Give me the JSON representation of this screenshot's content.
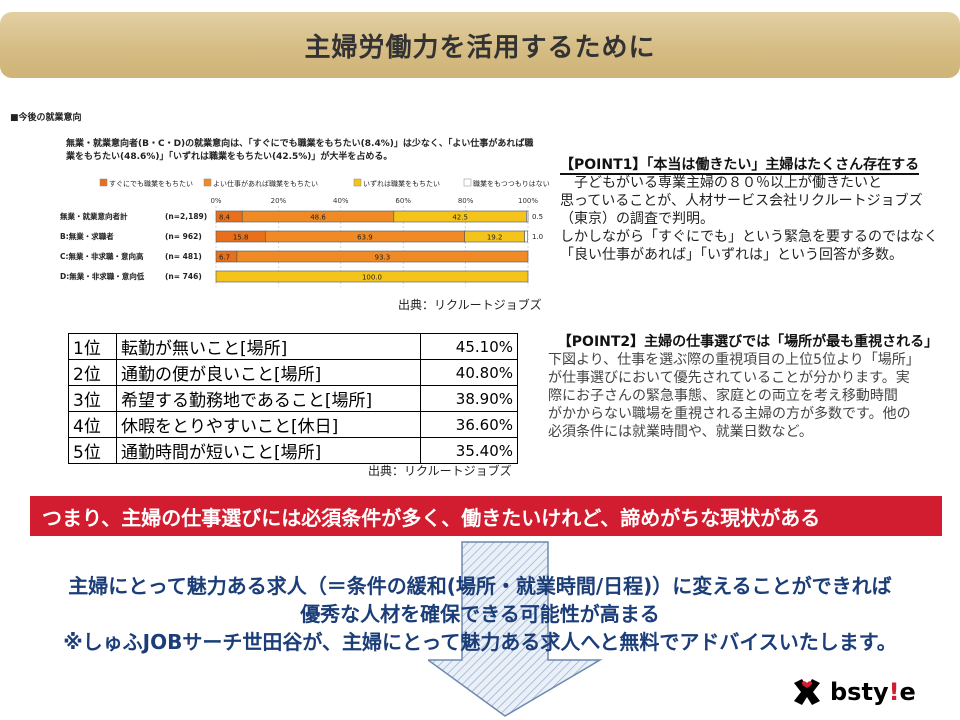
{
  "title": "主婦労働力を活用するために",
  "chart": {
    "heading": "■今後の就業意向",
    "description": "無業・就業意向者(B・C・D)の就業意向は、「すぐにでも職業をもちたい(8.4%)」は少なく、「よい仕事があれば職業をもちたい(48.6%)」「いずれは職業をもちたい(42.5%)」が大半を占める。",
    "source": "出典：リクルートジョブズ"
  },
  "chart_data": {
    "type": "bar",
    "orientation": "horizontal",
    "stacked": true,
    "categories": [
      "無業・就業意向者計",
      "B:無業・求職者",
      "C:無業・非求職・意向高",
      "D:無業・非求職・意向低"
    ],
    "n_labels": [
      "(n=2,189)",
      "(n=  962)",
      "(n=  481)",
      "(n=  746)"
    ],
    "series": [
      {
        "name": "すぐにでも職業をもちたい",
        "values": [
          8.4,
          15.8,
          6.7,
          0
        ],
        "color": "#e8701a"
      },
      {
        "name": "よい仕事があれば職業をもちたい",
        "values": [
          48.6,
          63.9,
          93.3,
          0
        ],
        "color": "#f08a24"
      },
      {
        "name": "いずれは職業をもちたい",
        "values": [
          42.5,
          19.2,
          0,
          100.0
        ],
        "color": "#f5c41a"
      },
      {
        "name": "職業をもつつもりはない",
        "values": [
          0.5,
          1.0,
          0,
          0
        ],
        "color": "#ffffff"
      }
    ],
    "xticks": [
      "0%",
      "20%",
      "40%",
      "60%",
      "80%",
      "100%"
    ],
    "xlim": [
      0,
      100
    ],
    "legend_position": "top",
    "grid": true
  },
  "point1": {
    "heading": "【POINT1】「本当は働きたい」主婦はたくさん存在する",
    "lines": [
      "　子どもがいる専業主婦の８０％以上が働きたいと",
      "思っていることが、人材サービス会社リクルートジョブズ",
      "（東京）の調査で判明。",
      "しかしながら「すぐにでも」という緊急を要するのではなく",
      "「良い仕事があれば」「いずれは」という回答が多数。"
    ]
  },
  "ranking": {
    "rows": [
      {
        "rank": "1位",
        "item": "転勤が無いこと[場所]",
        "value": "45.10%"
      },
      {
        "rank": "2位",
        "item": "通勤の便が良いこと[場所]",
        "value": "40.80%"
      },
      {
        "rank": "3位",
        "item": "希望する勤務地であること[場所]",
        "value": "38.90%"
      },
      {
        "rank": "4位",
        "item": "休暇をとりやすいこと[休日]",
        "value": "36.60%"
      },
      {
        "rank": "5位",
        "item": "通勤時間が短いこと[場所]",
        "value": "35.40%"
      }
    ],
    "source": "出典：リクルートジョブズ"
  },
  "point2": {
    "heading": "【POINT2】主婦の仕事選びでは「場所が最も重視される」",
    "lines": [
      "下図より、仕事を選ぶ際の重視項目の上位5位より「場所」",
      "が仕事選びにおいて優先されていることが分かります。実",
      "際にお子さんの緊急事態、家庭との両立を考え移動時間",
      "がかからない職場を重視される主婦の方が多数です。他の",
      "必須条件には就業時間や、就業日数など。"
    ]
  },
  "banner": "つまり、主婦の仕事選びには必須条件が多く、働きたいけれど、諦めがちな現状がある",
  "conclusion": [
    "主婦にとって魅力ある求人（＝条件の緩和(場所・就業時間/日程)）に変えることができれば",
    "優秀な人材を確保できる可能性が高まる",
    "※しゅふJOBサーチ世田谷が、主婦にとって魅力ある求人へと無料でアドバイスいたします。"
  ],
  "logo": {
    "text_main": "bsty",
    "text_mark": "!",
    "text_end": "e",
    "icon": "cross-logo-icon"
  }
}
